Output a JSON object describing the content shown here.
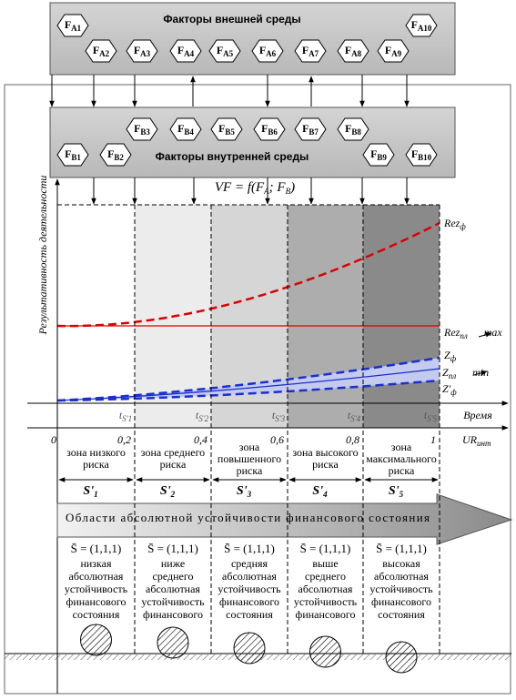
{
  "external": {
    "title": "Факторы внешней среды",
    "factors": [
      {
        "main": "F",
        "sub": "A1"
      },
      {
        "main": "F",
        "sub": "A2"
      },
      {
        "main": "F",
        "sub": "A3"
      },
      {
        "main": "F",
        "sub": "A4"
      },
      {
        "main": "F",
        "sub": "A5"
      },
      {
        "main": "F",
        "sub": "A6"
      },
      {
        "main": "F",
        "sub": "A7"
      },
      {
        "main": "F",
        "sub": "A8"
      },
      {
        "main": "F",
        "sub": "A9"
      },
      {
        "main": "F",
        "sub": "A10"
      }
    ]
  },
  "internal": {
    "title": "Факторы внутренней среды",
    "factors": [
      {
        "main": "F",
        "sub": "B1"
      },
      {
        "main": "F",
        "sub": "B2"
      },
      {
        "main": "F",
        "sub": "B3"
      },
      {
        "main": "F",
        "sub": "B4"
      },
      {
        "main": "F",
        "sub": "B5"
      },
      {
        "main": "F",
        "sub": "B6"
      },
      {
        "main": "F",
        "sub": "B7"
      },
      {
        "main": "F",
        "sub": "B8"
      },
      {
        "main": "F",
        "sub": "B9"
      },
      {
        "main": "F",
        "sub": "B10"
      }
    ]
  },
  "formula": {
    "main": "VF = f(F",
    "sub": "A",
    "post": "; F",
    "sub2": "B",
    "post2": ")"
  },
  "axis": {
    "y_label": "Результативность деятельности",
    "time_label": "Время",
    "ur_label": {
      "main": "UR",
      "sub": "инт"
    },
    "time_ticks": [
      {
        "main": "t",
        "sub": "S'1"
      },
      {
        "main": "t",
        "sub": "S'2"
      },
      {
        "main": "t",
        "sub": "S'3"
      },
      {
        "main": "t",
        "sub": "S'4"
      },
      {
        "main": "t",
        "sub": "S'5"
      }
    ],
    "ur_ticks": [
      "0",
      "0,2",
      "0,4",
      "0,6",
      "0,8",
      "1"
    ]
  },
  "curves": {
    "rez_f": {
      "main": "Rez",
      "sub": "ф"
    },
    "rez_pl": {
      "main": "Rez",
      "sub": "пл",
      "post": "max"
    },
    "z_f": {
      "main": "Z",
      "sub": "ф"
    },
    "z_pl": {
      "main": "Z",
      "sub": "пл",
      "post": "min"
    },
    "z_f2": {
      "main": "Z'",
      "sub": "ф"
    }
  },
  "band": "Области абсолютной устойчивости финансового состояния",
  "zones": [
    {
      "label": [
        "зона низкого",
        "риска"
      ],
      "state": {
        "main": "S'",
        "sub": "1"
      },
      "formula": "S̄ = (1,1,1)",
      "description": [
        "низкая",
        "абсолютная",
        "устойчивость",
        "финансового",
        "состояния"
      ]
    },
    {
      "label": [
        "зона среднего",
        "риска"
      ],
      "state": {
        "main": "S'",
        "sub": "2"
      },
      "formula": "S̄ = (1,1,1)",
      "description": [
        "ниже",
        "среднего",
        "абсолютная",
        "устойчивость",
        "финансового"
      ]
    },
    {
      "label": [
        "зона",
        "повышенного",
        "риска"
      ],
      "state": {
        "main": "S'",
        "sub": "3"
      },
      "formula": "S̄ = (1,1,1)",
      "description": [
        "средняя",
        "абсолютная",
        "устойчивость",
        "финансового",
        "состояния"
      ]
    },
    {
      "label": [
        "зона высокого",
        "риска"
      ],
      "state": {
        "main": "S'",
        "sub": "4"
      },
      "formula": "S̄ = (1,1,1)",
      "description": [
        "выше",
        "среднего",
        "абсолютная",
        "устойчивость",
        "финансового"
      ]
    },
    {
      "label": [
        "зона",
        "максимального",
        "риска"
      ],
      "state": {
        "main": "S'",
        "sub": "5"
      },
      "formula": "S̄ = (1,1,1)",
      "description": [
        "высокая",
        "абсолютная",
        "устойчивость",
        "финансового",
        "состояния"
      ]
    }
  ]
}
